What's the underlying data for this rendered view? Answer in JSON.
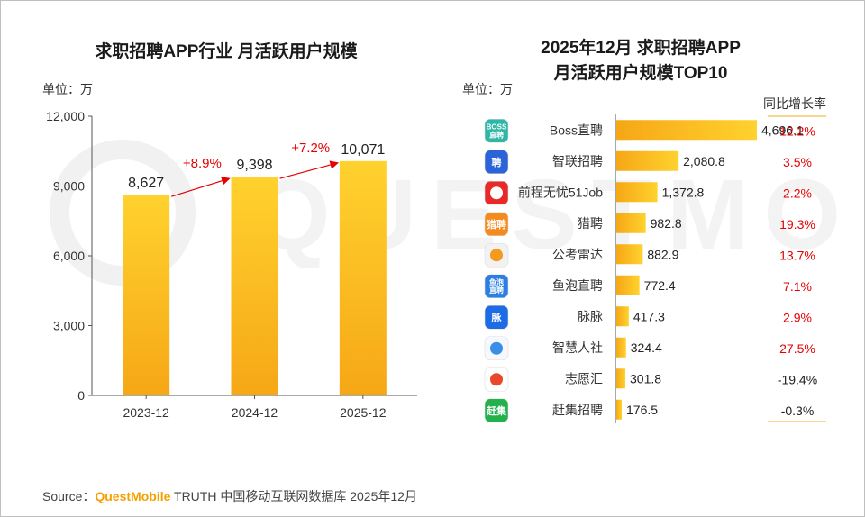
{
  "left_chart": {
    "title": "求职招聘APP行业 月活跃用户规模",
    "unit": "单位：万"
  },
  "right_chart": {
    "title_line1": "2025年12月 求职招聘APP",
    "title_line2": "月活跃用户规模TOP10",
    "unit": "单位：万",
    "growth_header": "同比增长率"
  },
  "watermark": "QUESTMOBILE",
  "source": {
    "prefix": "Source：",
    "brand": "QuestMobile",
    "rest": " TRUTH 中国移动互联网数据库 2025年12月"
  },
  "colors": {
    "bar_top": "#ffd22e",
    "bar_bottom": "#f6a716",
    "positive_growth": "#e60000",
    "negative_growth": "#222222",
    "arrow": "#e60000"
  },
  "chart_data": [
    {
      "type": "bar",
      "title": "求职招聘APP行业 月活跃用户规模",
      "ylabel": "单位：万",
      "categories": [
        "2023-12",
        "2024-12",
        "2025-12"
      ],
      "values": [
        8627,
        9398,
        10071
      ],
      "value_labels": [
        "8,627",
        "9,398",
        "10,071"
      ],
      "ylim": [
        0,
        12000
      ],
      "yticks": [
        0,
        3000,
        6000,
        9000,
        12000
      ],
      "ytick_labels": [
        "0",
        "3,000",
        "6,000",
        "9,000",
        "12,000"
      ],
      "growth_annotations": [
        "+8.9%",
        "+7.2%"
      ],
      "grid": false
    },
    {
      "type": "bar",
      "orientation": "horizontal",
      "title": "2025年12月 求职招聘APP 月活跃用户规模TOP10",
      "ylabel": "单位：万",
      "categories": [
        "Boss直聘",
        "智联招聘",
        "前程无忧51Job",
        "猎聘",
        "公考雷达",
        "鱼泡直聘",
        "脉脉",
        "智慧人社",
        "志愿汇",
        "赶集招聘"
      ],
      "values": [
        4696.1,
        2080.8,
        1372.8,
        982.8,
        882.9,
        772.4,
        417.3,
        324.4,
        301.8,
        176.5
      ],
      "value_labels": [
        "4,696.1",
        "2,080.8",
        "1,372.8",
        "982.8",
        "882.9",
        "772.4",
        "417.3",
        "324.4",
        "301.8",
        "176.5"
      ],
      "growth": [
        "12.2%",
        "3.5%",
        "2.2%",
        "19.3%",
        "13.7%",
        "7.1%",
        "2.9%",
        "27.5%",
        "-19.4%",
        "-0.3%"
      ],
      "growth_values": [
        12.2,
        3.5,
        2.2,
        19.3,
        13.7,
        7.1,
        2.9,
        27.5,
        -19.4,
        -0.3
      ],
      "icons": [
        "boss-icon",
        "zhilian-icon",
        "51job-icon",
        "liepin-icon",
        "gongkao-icon",
        "yupao-icon",
        "maimai-icon",
        "zhihuirenshe-icon",
        "zhiyuanhui-icon",
        "ganji-icon"
      ],
      "icon_texts": [
        "BOSS\n直聘",
        "聘",
        "",
        "猎聘",
        "",
        "鱼泡\n直聘",
        "脉",
        "",
        "",
        "赶集"
      ],
      "icon_colors": [
        "#2fb6a6",
        "#2a64d8",
        "#e8292a",
        "#f58a1f",
        "#f2f2f2",
        "#2b7fe3",
        "#1e6be6",
        "#f5f8ff",
        "#ffffff",
        "#22b14c"
      ],
      "grid": false
    }
  ]
}
